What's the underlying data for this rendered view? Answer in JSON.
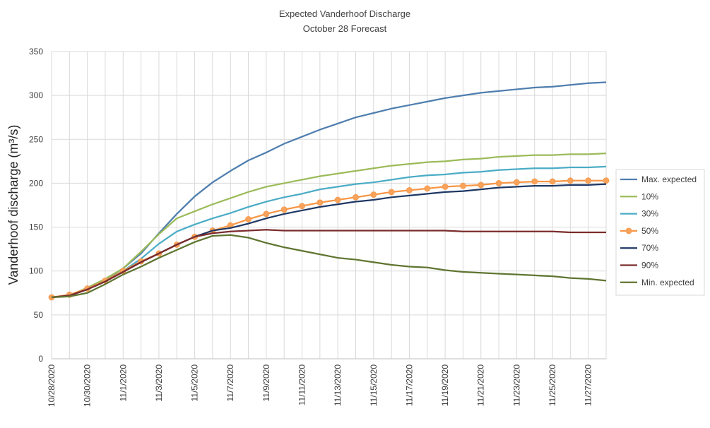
{
  "chart_data": {
    "type": "line",
    "title": "Expected Vanderhoof Discharge",
    "subtitle": "October 28 Forecast",
    "ylabel": "Vanderhoof discharge (m³/s)",
    "xlabel": "",
    "ylim": [
      0,
      350
    ],
    "yticks": [
      0,
      50,
      100,
      150,
      200,
      250,
      300,
      350
    ],
    "x_start": "10/28/2020",
    "x": [
      "10/28/2020",
      "10/29/2020",
      "10/30/2020",
      "10/31/2020",
      "11/1/2020",
      "11/2/2020",
      "11/3/2020",
      "11/4/2020",
      "11/5/2020",
      "11/6/2020",
      "11/7/2020",
      "11/8/2020",
      "11/9/2020",
      "11/10/2020",
      "11/11/2020",
      "11/12/2020",
      "11/13/2020",
      "11/14/2020",
      "11/15/2020",
      "11/16/2020",
      "11/17/2020",
      "11/18/2020",
      "11/19/2020",
      "11/20/2020",
      "11/21/2020",
      "11/22/2020",
      "11/23/2020",
      "11/24/2020",
      "11/25/2020",
      "11/26/2020",
      "11/27/2020",
      "11/28/2020"
    ],
    "xtick_labels": [
      "10/28/2020",
      "10/30/2020",
      "11/1/2020",
      "11/3/2020",
      "11/5/2020",
      "11/7/2020",
      "11/9/2020",
      "11/11/2020",
      "11/13/2020",
      "11/15/2020",
      "11/17/2020",
      "11/19/2020",
      "11/21/2020",
      "11/23/2020",
      "11/25/2020",
      "11/27/2020"
    ],
    "grid": true,
    "legend_position": "right",
    "series": [
      {
        "name": "Max. expected",
        "color": "#4f7eaf",
        "marker": false,
        "values": [
          70,
          72,
          80,
          90,
          103,
          120,
          143,
          165,
          185,
          201,
          214,
          226,
          235,
          245,
          253,
          261,
          268,
          275,
          280,
          285,
          289,
          293,
          297,
          300,
          303,
          305,
          307,
          309,
          310,
          312,
          314,
          315
        ]
      },
      {
        "name": "10%",
        "color": "#9bbb59",
        "marker": false,
        "values": [
          70,
          72,
          81,
          91,
          103,
          122,
          142,
          160,
          168,
          176,
          183,
          190,
          196,
          200,
          204,
          208,
          211,
          214,
          217,
          220,
          222,
          224,
          225,
          227,
          228,
          230,
          231,
          232,
          232,
          233,
          233,
          234
        ]
      },
      {
        "name": "30%",
        "color": "#4bacc6",
        "marker": false,
        "values": [
          70,
          72,
          80,
          89,
          100,
          114,
          131,
          145,
          153,
          160,
          166,
          173,
          179,
          184,
          188,
          193,
          196,
          199,
          201,
          204,
          207,
          209,
          210,
          212,
          213,
          215,
          216,
          217,
          217,
          218,
          218,
          219
        ]
      },
      {
        "name": "50%",
        "color": "#f79646",
        "marker": true,
        "marker_color": "#f7a35c",
        "values": [
          70,
          73,
          80,
          89,
          100,
          111,
          120,
          130,
          139,
          146,
          152,
          159,
          165,
          170,
          174,
          178,
          181,
          184,
          187,
          190,
          192,
          194,
          196,
          197,
          198,
          200,
          201,
          202,
          202,
          203,
          203,
          203
        ]
      },
      {
        "name": "70%",
        "color": "#1f3864",
        "marker": false,
        "values": [
          70,
          72,
          79,
          88,
          99,
          110,
          120,
          130,
          139,
          146,
          149,
          154,
          160,
          165,
          169,
          173,
          176,
          179,
          181,
          184,
          186,
          188,
          190,
          191,
          193,
          195,
          196,
          197,
          197,
          198,
          198,
          199
        ]
      },
      {
        "name": "90%",
        "color": "#7b2c2c",
        "marker": false,
        "values": [
          70,
          72,
          79,
          88,
          99,
          110,
          120,
          130,
          139,
          143,
          145,
          146,
          147,
          146,
          146,
          146,
          146,
          146,
          146,
          146,
          146,
          146,
          146,
          145,
          145,
          145,
          145,
          145,
          145,
          144,
          144,
          144
        ]
      },
      {
        "name": "Min. expected",
        "color": "#5f7530",
        "marker": false,
        "values": [
          70,
          71,
          75,
          85,
          96,
          105,
          115,
          124,
          133,
          140,
          141,
          138,
          132,
          127,
          123,
          119,
          115,
          113,
          110,
          107,
          105,
          104,
          101,
          99,
          98,
          97,
          96,
          95,
          94,
          92,
          91,
          89
        ]
      }
    ]
  }
}
